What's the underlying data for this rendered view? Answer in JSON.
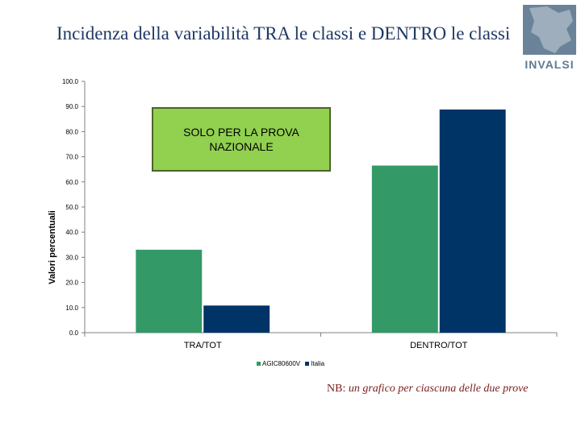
{
  "slide": {
    "title": "Incidenza della variabilità TRA le classi e DENTRO le classi",
    "logo_text": "INVALSI",
    "callout_text": "SOLO PER LA PROVA NAZIONALE",
    "note_prefix": "NB:",
    "note_body": "un grafico per ciascuna delle due prove"
  },
  "colors": {
    "series_1": "#339966",
    "series_2": "#003366",
    "callout_fill": "#92d050",
    "title": "#1f3864",
    "logo": "#6b8398",
    "note": "#7b1c1c"
  },
  "chart_data": {
    "type": "bar",
    "ylabel": "Valori percentuali",
    "xlabel": "",
    "ylim": [
      0,
      100
    ],
    "yticks": [
      "0.0",
      "10.0",
      "20.0",
      "30.0",
      "40.0",
      "50.0",
      "60.0",
      "70.0",
      "80.0",
      "90.0",
      "100.0"
    ],
    "categories": [
      "TRA/TOT",
      "DENTRO/TOT"
    ],
    "series": [
      {
        "name": "AGIC80600V",
        "values": [
          33.0,
          66.5
        ]
      },
      {
        "name": "Italia",
        "values": [
          10.8,
          88.8
        ]
      }
    ],
    "grid": false,
    "legend": "bottom"
  }
}
